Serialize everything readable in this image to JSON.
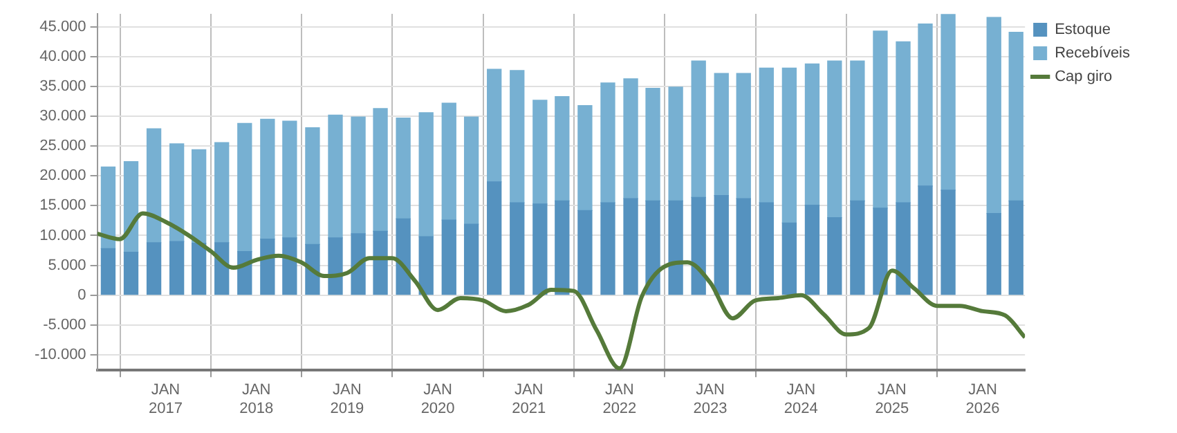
{
  "chart_data": {
    "type": "bar",
    "stacked": true,
    "x": [
      "2016-05-15",
      "2016-08-15",
      "2016-11-15",
      "2017-02-15",
      "2017-05-15",
      "2017-08-15",
      "2017-11-15",
      "2018-02-15",
      "2018-05-15",
      "2018-08-15",
      "2018-11-15",
      "2019-02-15",
      "2019-05-15",
      "2019-08-15",
      "2019-11-15",
      "2020-02-15",
      "2020-05-15",
      "2020-08-15",
      "2020-11-15",
      "2021-02-15",
      "2021-05-15",
      "2021-08-15",
      "2021-11-15",
      "2022-02-15",
      "2022-05-15",
      "2022-08-15",
      "2022-11-15",
      "2023-02-15",
      "2023-05-15",
      "2023-08-15",
      "2023-11-15",
      "2024-02-15",
      "2024-05-15",
      "2024-08-15",
      "2024-11-15",
      "2025-02-15",
      "2025-05-15",
      "2025-08-15",
      "2025-11-15",
      "2026-02-15",
      "2026-05-15"
    ],
    "series": [
      {
        "name": "Estoque",
        "color": "#5592bf",
        "values": [
          7800,
          7200,
          8800,
          9000,
          8700,
          8800,
          7300,
          9400,
          9600,
          8500,
          9600,
          10300,
          10700,
          12800,
          9800,
          12600,
          11900,
          19000,
          15500,
          15300,
          15800,
          14200,
          15500,
          16200,
          15800,
          15800,
          16400,
          16700,
          16200,
          15500,
          12100,
          15100,
          13000,
          15800,
          14600,
          15500,
          18300,
          17600,
          null,
          13700,
          15800
        ]
      },
      {
        "name": "Recebíveis",
        "color": "#77b0d2",
        "values": [
          13700,
          15200,
          19100,
          16400,
          15700,
          16800,
          21500,
          20100,
          19600,
          19600,
          20600,
          19600,
          20600,
          16900,
          20800,
          19600,
          18000,
          18900,
          22200,
          17400,
          17500,
          17600,
          20100,
          20100,
          18900,
          19100,
          22900,
          20500,
          21000,
          22600,
          26000,
          23700,
          26300,
          23500,
          29700,
          27000,
          27200,
          29500,
          null,
          32900,
          28300
        ]
      },
      {
        "name": "Cap giro",
        "type": "line",
        "color": "#557a3a",
        "marker": "none",
        "x": [
          "2016-04-01",
          "2016-07-01",
          "2016-10-01",
          "2017-01-01",
          "2017-04-01",
          "2017-07-01",
          "2017-10-01",
          "2018-01-01",
          "2018-04-01",
          "2018-07-01",
          "2018-10-01",
          "2019-01-01",
          "2019-04-01",
          "2019-07-01",
          "2019-10-01",
          "2020-01-01",
          "2020-04-01",
          "2020-07-01",
          "2020-10-01",
          "2021-01-01",
          "2021-04-01",
          "2021-07-01",
          "2021-10-01",
          "2022-01-01",
          "2022-04-01",
          "2022-07-01",
          "2022-10-01",
          "2023-01-01",
          "2023-04-01",
          "2023-07-01",
          "2023-10-01",
          "2024-01-01",
          "2024-04-01",
          "2024-07-01",
          "2024-10-01",
          "2025-01-01",
          "2025-04-01",
          "2025-07-01",
          "2025-10-01",
          "2026-01-01",
          "2026-04-01",
          "2026-06-20"
        ],
        "values": [
          10300,
          9400,
          13700,
          12300,
          10100,
          7400,
          4600,
          5900,
          6600,
          5500,
          3200,
          3700,
          6200,
          6200,
          2400,
          -2500,
          -500,
          -900,
          -2700,
          -1600,
          900,
          700,
          -5900,
          -12300,
          -200,
          4800,
          5500,
          2100,
          -3900,
          -900,
          -500,
          0,
          -3200,
          -6600,
          -5500,
          4100,
          1100,
          -1800,
          -1800,
          -2700,
          -3400,
          -7100
        ]
      }
    ],
    "xlim": [
      "2016-04-01",
      "2026-06-20"
    ],
    "xticks": [
      {
        "value": "2017-01-01",
        "label": "JAN 2017"
      },
      {
        "value": "2018-01-01",
        "label": "JAN 2018"
      },
      {
        "value": "2019-01-01",
        "label": "JAN 2019"
      },
      {
        "value": "2020-01-01",
        "label": "JAN 2020"
      },
      {
        "value": "2021-01-01",
        "label": "JAN 2021"
      },
      {
        "value": "2022-01-01",
        "label": "JAN 2022"
      },
      {
        "value": "2023-01-01",
        "label": "JAN 2023"
      },
      {
        "value": "2024-01-01",
        "label": "JAN 2024"
      },
      {
        "value": "2025-01-01",
        "label": "JAN 2025"
      },
      {
        "value": "2026-01-01",
        "label": "JAN 2026"
      }
    ],
    "ylim": [
      -12600,
      47200
    ],
    "yticks": [
      {
        "value": -10000,
        "label": "-10.000"
      },
      {
        "value": -5000,
        "label": "-5.000"
      },
      {
        "value": 0,
        "label": "0"
      },
      {
        "value": 5000,
        "label": "5.000"
      },
      {
        "value": 10000,
        "label": "10.000"
      },
      {
        "value": 15000,
        "label": "15.000"
      },
      {
        "value": 20000,
        "label": "20.000"
      },
      {
        "value": 25000,
        "label": "25.000"
      },
      {
        "value": 30000,
        "label": "30.000"
      },
      {
        "value": 35000,
        "label": "35.000"
      },
      {
        "value": 40000,
        "label": "40.000"
      },
      {
        "value": 45000,
        "label": "45.000"
      }
    ],
    "grid": true,
    "legend": "top right"
  }
}
